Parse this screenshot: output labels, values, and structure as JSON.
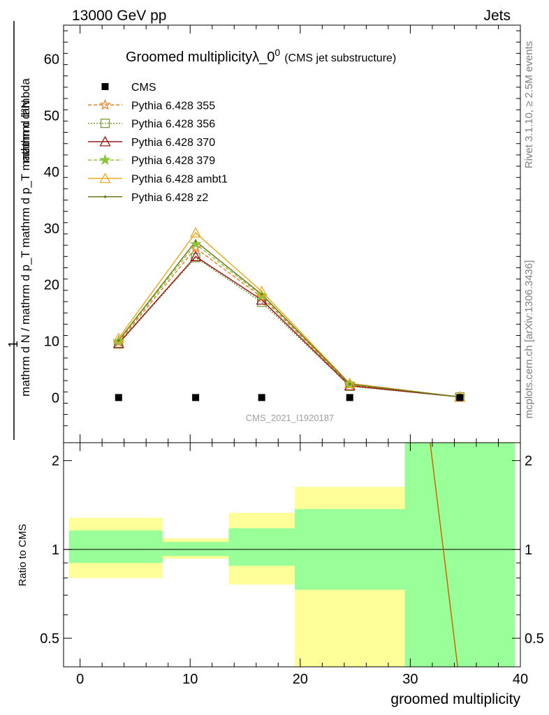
{
  "header": {
    "energy": "13000 GeV pp",
    "process": "Jets",
    "side_rivet": "Rivet 3.1.10, ≥ 2.5M events",
    "side_mcplots": "mcplots.cern.ch [arXiv:1306.3436]",
    "watermark": "CMS_2021_I1920187"
  },
  "chart_data": {
    "main": {
      "type": "line",
      "title": "Groomed multiplicityλ_0",
      "title_sup": "0",
      "title_suffix": "(CMS jet substructure)",
      "ylabel_num": "mathrm d²N",
      "ylabel_den": "mathrm d N / mathrm d p_T mathrm d p_T mathrm d lambda",
      "ylabel_one": "1",
      "ylim": [
        -8,
        66
      ],
      "yticks": [
        0,
        10,
        20,
        30,
        40,
        50,
        60
      ],
      "xlim": [
        -1.5,
        40
      ],
      "x": [
        3.5,
        10.5,
        16.5,
        24.5,
        34.5
      ],
      "cms": [
        0,
        0,
        0,
        0,
        0
      ],
      "series": [
        {
          "name": "CMS",
          "color": "#000000",
          "marker": "square"
        },
        {
          "name": "Pythia 6.428 355",
          "color": "#f07e20",
          "dash": "5,3",
          "marker": "star-open",
          "values": [
            9.8,
            26.5,
            17.8,
            2.3,
            0.1
          ]
        },
        {
          "name": "Pythia 6.428 356",
          "color": "#7a9a2e",
          "dash": "2,2",
          "marker": "square-open",
          "values": [
            9.5,
            24.8,
            16.9,
            2.0,
            0.1
          ]
        },
        {
          "name": "Pythia 6.428 370",
          "color": "#991a1a",
          "dash": "",
          "marker": "triangle-open",
          "values": [
            9.6,
            25.0,
            17.3,
            2.1,
            0.1
          ]
        },
        {
          "name": "Pythia 6.428 379",
          "color": "#8cc43f",
          "dash": "5,3",
          "marker": "star",
          "values": [
            10.0,
            27.2,
            18.1,
            2.4,
            0.1
          ]
        },
        {
          "name": "Pythia 6.428 ambt1",
          "color": "#eeaa22",
          "dash": "",
          "marker": "triangle-open",
          "values": [
            10.5,
            29.2,
            18.8,
            2.5,
            0.1
          ]
        },
        {
          "name": "Pythia 6.428 z2",
          "color": "#6b7a1a",
          "dash": "",
          "marker": "dot",
          "values": [
            10.1,
            27.7,
            18.3,
            2.4,
            0.1
          ]
        }
      ]
    },
    "ratio": {
      "ylabel": "Ratio to CMS",
      "ylim": [
        0.4,
        2.3
      ],
      "log_scale": true,
      "yticks": [
        0.5,
        1,
        2
      ],
      "xticks": [
        0,
        10,
        20,
        30,
        40
      ],
      "xlabel": "groomed multiplicity",
      "bands": [
        {
          "x0": -1,
          "x1": 7.5,
          "green": [
            0.9,
            1.16
          ],
          "yellow": [
            0.8,
            1.28
          ]
        },
        {
          "x0": 7.5,
          "x1": 13.5,
          "green": [
            0.95,
            1.06
          ],
          "yellow": [
            0.93,
            1.09
          ]
        },
        {
          "x0": 13.5,
          "x1": 19.5,
          "green": [
            0.88,
            1.18
          ],
          "yellow": [
            0.76,
            1.33
          ]
        },
        {
          "x0": 19.5,
          "x1": 29.5,
          "green": [
            0.73,
            1.37
          ],
          "yellow": [
            0.4,
            1.63
          ]
        },
        {
          "x0": 29.5,
          "x1": 39.5,
          "green": [
            0.4,
            2.3
          ],
          "yellow": [
            0.4,
            2.3
          ]
        }
      ],
      "ratio_line": {
        "x": [
          31.8,
          33.0,
          34.3
        ],
        "y": [
          2.3,
          1.0,
          0.4
        ],
        "color": "#cc6600"
      }
    },
    "band_colors": {
      "green": "#99ff99",
      "yellow": "#ffff99"
    }
  }
}
